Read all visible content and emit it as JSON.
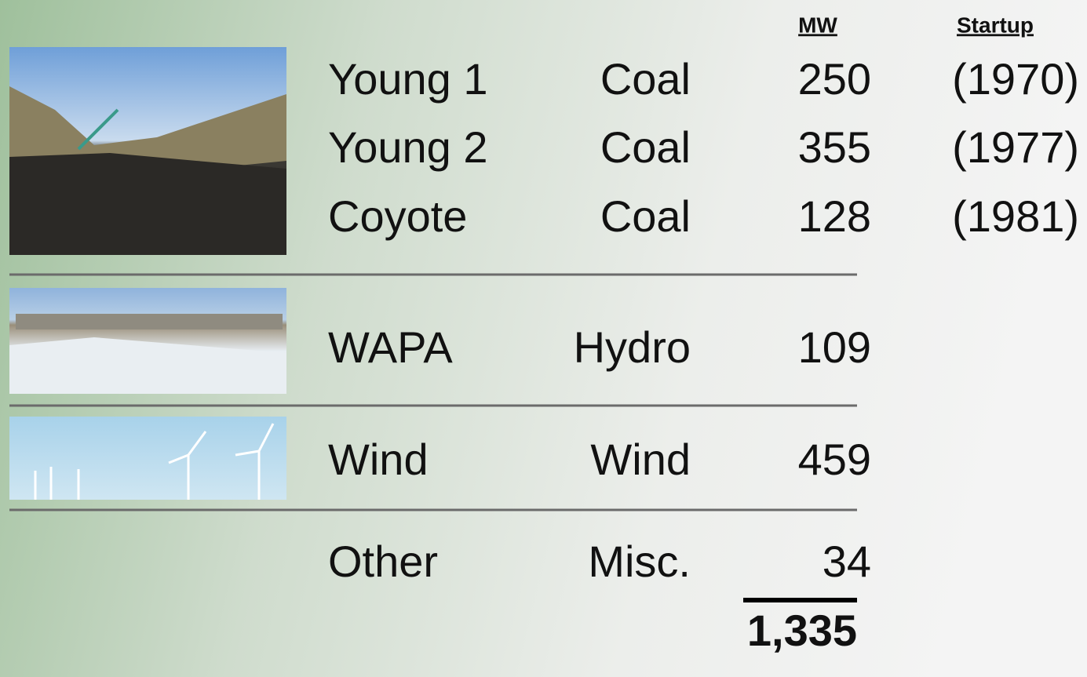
{
  "header": {
    "mw": "MW",
    "startup": "Startup"
  },
  "rows": [
    {
      "name": "Young 1",
      "fuel": "Coal",
      "mw": "250",
      "startup": "(1970)"
    },
    {
      "name": "Young 2",
      "fuel": "Coal",
      "mw": "355",
      "startup": "(1977)"
    },
    {
      "name": "Coyote",
      "fuel": "Coal",
      "mw": "128",
      "startup": "(1981)"
    },
    {
      "name": "WAPA",
      "fuel": "Hydro",
      "mw": "109"
    },
    {
      "name": "Wind",
      "fuel": "Wind",
      "mw": "459"
    },
    {
      "name": "Other",
      "fuel": "Misc.",
      "mw": "34"
    }
  ],
  "total": "1,335"
}
